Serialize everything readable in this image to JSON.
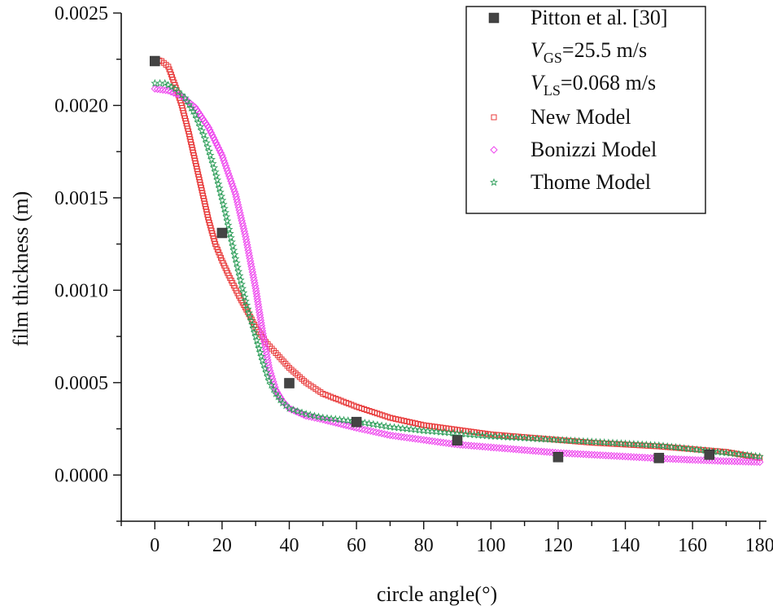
{
  "chart_data": {
    "type": "scatter",
    "title": "",
    "xlabel": "circle angle(°)",
    "ylabel": "film thickness (m)",
    "xlim": [
      -10,
      182
    ],
    "ylim": [
      -0.00025,
      0.0025
    ],
    "x_ticks": [
      0,
      20,
      40,
      60,
      80,
      100,
      120,
      140,
      160,
      180
    ],
    "x_tick_labels": [
      "0",
      "20",
      "40",
      "60",
      "80",
      "100",
      "120",
      "140",
      "160",
      "180"
    ],
    "y_ticks": [
      0,
      0.0005,
      0.001,
      0.0015,
      0.002,
      0.0025
    ],
    "y_tick_labels": [
      "0.0000",
      "0.0005",
      "0.0010",
      "0.0015",
      "0.0020",
      "0.0025"
    ],
    "legend_position": "top-right",
    "legend": {
      "experimental_label": "Pitton et al.",
      "experimental_ref": "[30]",
      "vgs": {
        "var": "V",
        "sub": "GS",
        "value": "=25.5 m/s"
      },
      "vls": {
        "var": "V",
        "sub": "LS",
        "value": "=0.068 m/s"
      }
    },
    "series": [
      {
        "name": "Pitton et al.[30]",
        "marker": "filled-square",
        "color": "#444444",
        "x": [
          0,
          20,
          40,
          60,
          90,
          120,
          150,
          165
        ],
        "y": [
          0.00224,
          0.00131,
          0.000497,
          0.000287,
          0.000188,
          9.7e-05,
          9.2e-05,
          0.00011
        ]
      },
      {
        "name": "New Model",
        "marker": "open-square",
        "color": "#e83b3b",
        "x": [
          0,
          2,
          4,
          6,
          8,
          10,
          12,
          14,
          16,
          18,
          20,
          22,
          25,
          28,
          30,
          33,
          36,
          40,
          45,
          50,
          60,
          70,
          80,
          90,
          100,
          110,
          120,
          130,
          140,
          150,
          160,
          170,
          180
        ],
        "y": [
          0.00225,
          0.00224,
          0.00221,
          0.00211,
          0.002,
          0.00186,
          0.0017,
          0.00154,
          0.00138,
          0.00125,
          0.00116,
          0.00108,
          0.00097,
          0.00087,
          0.0008,
          0.00072,
          0.00066,
          0.00058,
          0.0005,
          0.00044,
          0.00037,
          0.00031,
          0.00027,
          0.000245,
          0.00022,
          0.000205,
          0.00019,
          0.000175,
          0.000165,
          0.000155,
          0.00014,
          0.000125,
          9.3e-05
        ]
      },
      {
        "name": "Bonizzi Model",
        "marker": "open-diamond",
        "color": "#ee44ee",
        "x": [
          0,
          4,
          8,
          12,
          16,
          20,
          24,
          27,
          30,
          32,
          34,
          36,
          38,
          40,
          45,
          50,
          60,
          70,
          80,
          90,
          100,
          110,
          120,
          130,
          140,
          150,
          160,
          170,
          180
        ],
        "y": [
          0.00209,
          0.00208,
          0.00205,
          0.00199,
          0.00188,
          0.00173,
          0.00152,
          0.00129,
          0.00101,
          0.00078,
          0.00058,
          0.00046,
          0.0004,
          0.00036,
          0.00032,
          0.0003,
          0.000255,
          0.000215,
          0.00019,
          0.000165,
          0.00015,
          0.000135,
          0.00012,
          0.00011,
          0.0001,
          9e-05,
          8.2e-05,
          7.5e-05,
          7e-05
        ]
      },
      {
        "name": "Thome Model",
        "marker": "open-star",
        "color": "#2e9e5a",
        "x": [
          0,
          3,
          6,
          9,
          12,
          15,
          18,
          21,
          24,
          27,
          30,
          32,
          34,
          36,
          38,
          40,
          45,
          50,
          60,
          70,
          80,
          90,
          100,
          110,
          120,
          130,
          140,
          150,
          160,
          170,
          180
        ],
        "y": [
          0.00212,
          0.00212,
          0.00209,
          0.00204,
          0.00195,
          0.00182,
          0.00164,
          0.00142,
          0.00117,
          0.00094,
          0.00075,
          0.00062,
          0.00051,
          0.00044,
          0.00039,
          0.00036,
          0.00033,
          0.00031,
          0.00029,
          0.00026,
          0.00024,
          0.000225,
          0.00021,
          0.0002,
          0.00019,
          0.00018,
          0.00017,
          0.00016,
          0.00014,
          0.00012,
          0.0001
        ]
      }
    ]
  }
}
